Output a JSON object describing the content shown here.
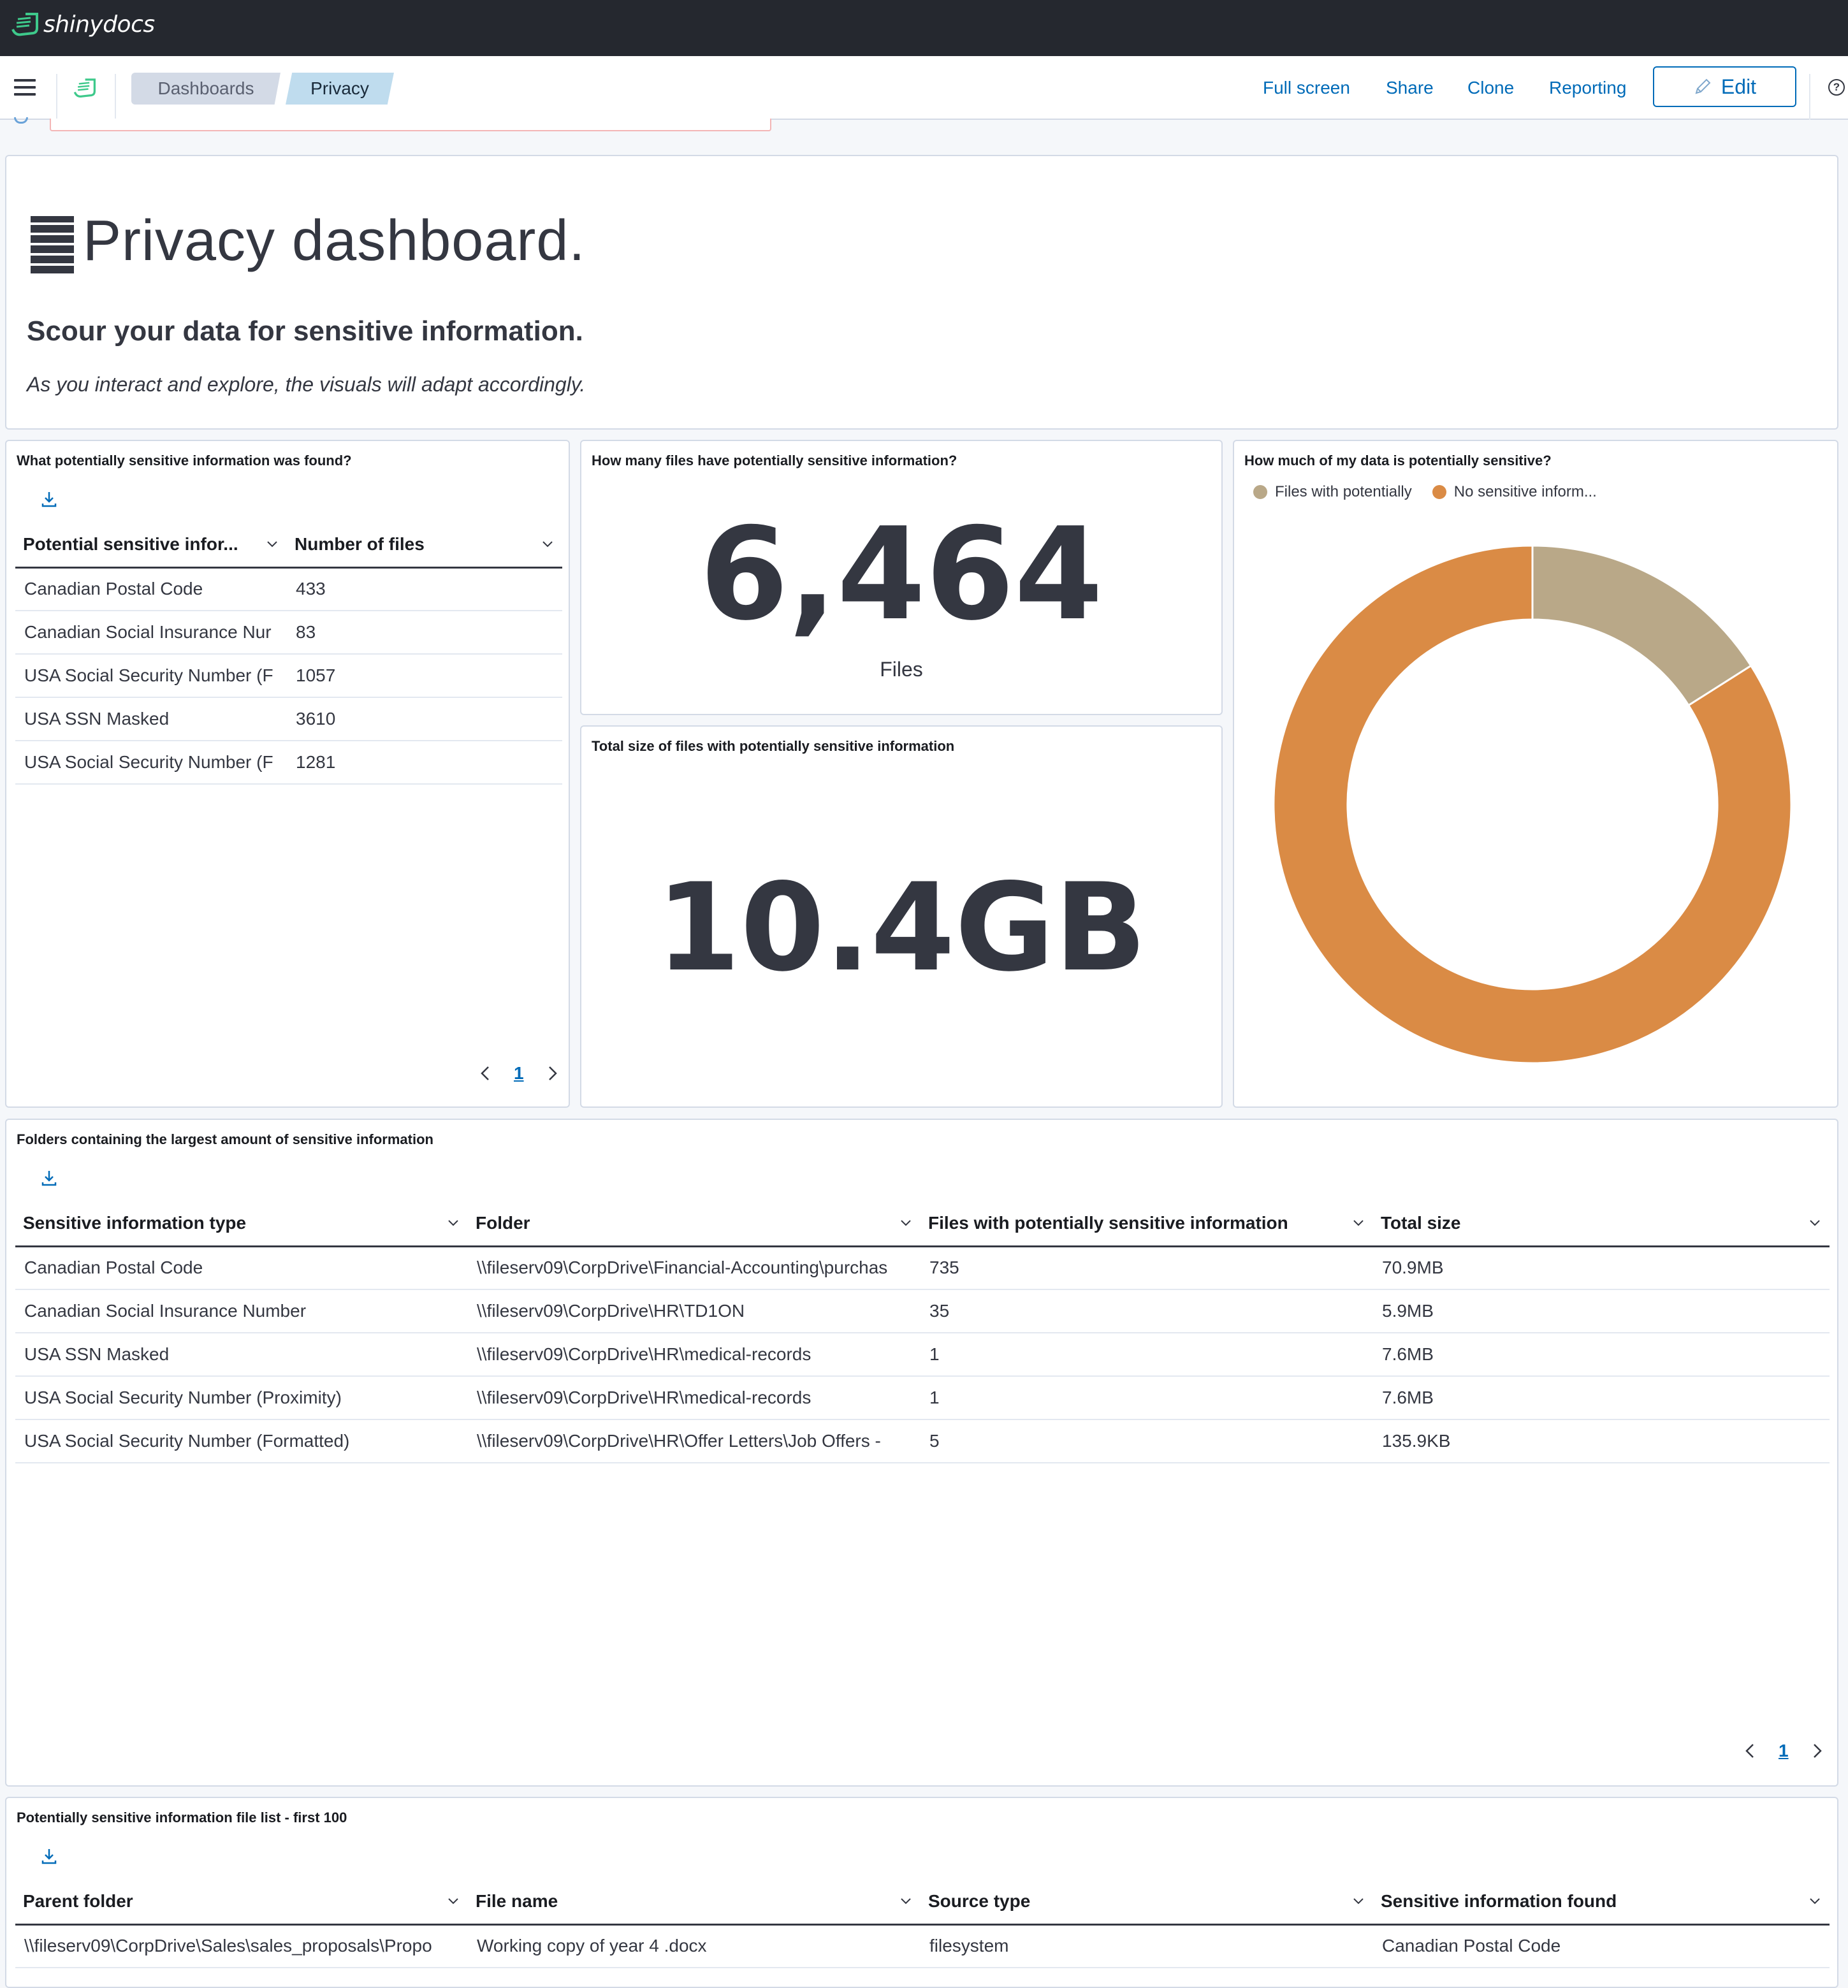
{
  "app": {
    "logo_text": "shinydocs"
  },
  "nav": {
    "breadcrumbs": [
      "Dashboards",
      "Privacy"
    ],
    "links": {
      "full_screen": "Full screen",
      "share": "Share",
      "clone": "Clone",
      "reporting": "Reporting"
    },
    "edit_label": "Edit",
    "help": "?"
  },
  "intro": {
    "title": "Privacy dashboard.",
    "subtitle": "Scour your data for sensitive information.",
    "description": "As you interact and explore, the visuals will adapt accordingly."
  },
  "found_panel": {
    "title": "What potentially sensitive information was found?",
    "columns": [
      "Potential sensitive infor...",
      "Number of files"
    ],
    "rows": [
      [
        "Canadian Postal Code",
        "433"
      ],
      [
        "Canadian Social Insurance Nur",
        "83"
      ],
      [
        "USA Social Security Number (F",
        "1057"
      ],
      [
        "USA SSN Masked",
        "3610"
      ],
      [
        "USA Social Security Number (F",
        "1281"
      ]
    ],
    "page": "1"
  },
  "files_metric": {
    "title": "How many files have potentially sensitive information?",
    "value": "6,464",
    "label": "Files"
  },
  "size_metric": {
    "title": "Total size of files with potentially sensitive information",
    "value": "10.4GB"
  },
  "donut_panel": {
    "title": "How much of my data is potentially sensitive?",
    "legend": [
      "Files with potentially",
      "No sensitive inform..."
    ]
  },
  "chart_data": {
    "type": "pie",
    "donut": true,
    "categories": [
      "Files with potentially",
      "No sensitive inform..."
    ],
    "values": [
      16,
      84
    ],
    "colors": [
      "#b9a888",
      "#da8b45"
    ],
    "legend": "top-left"
  },
  "folders_panel": {
    "title": "Folders containing the largest amount of sensitive information",
    "columns": [
      "Sensitive information type",
      "Folder",
      "Files with potentially sensitive information",
      "Total size"
    ],
    "rows": [
      [
        "Canadian Postal Code",
        "\\\\fileserv09\\CorpDrive\\Financial-Accounting\\purchas",
        "735",
        "70.9MB"
      ],
      [
        "Canadian Social Insurance Number",
        "\\\\fileserv09\\CorpDrive\\HR\\TD1ON",
        "35",
        "5.9MB"
      ],
      [
        "USA SSN Masked",
        "\\\\fileserv09\\CorpDrive\\HR\\medical-records",
        "1",
        "7.6MB"
      ],
      [
        "USA Social Security Number (Proximity)",
        "\\\\fileserv09\\CorpDrive\\HR\\medical-records",
        "1",
        "7.6MB"
      ],
      [
        "USA Social Security Number (Formatted)",
        "\\\\fileserv09\\CorpDrive\\HR\\Offer Letters\\Job Offers -",
        "5",
        "135.9KB"
      ]
    ],
    "page": "1"
  },
  "filelist_panel": {
    "title": "Potentially sensitive information file list - first 100",
    "columns": [
      "Parent folder",
      "File name",
      "Source type",
      "Sensitive information found"
    ],
    "rows": [
      [
        "\\\\fileserv09\\CorpDrive\\Sales\\sales_proposals\\Propo",
        "Working copy of year 4 .docx",
        "filesystem",
        "Canadian Postal Code"
      ]
    ]
  }
}
